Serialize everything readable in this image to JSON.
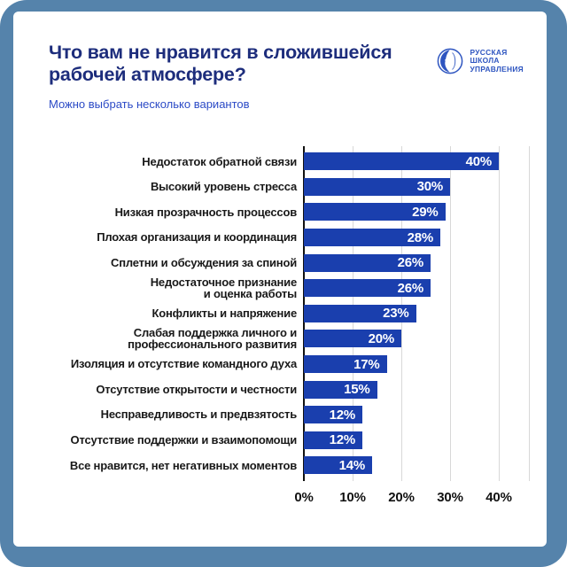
{
  "header": {
    "title": "Что вам не нравится в сложившейся\nрабочей атмосфере?",
    "subtitle": "Можно выбрать несколько вариантов",
    "logo": {
      "line1": "РУССКАЯ",
      "line2": "ШКОЛА",
      "line3": "УПРАВЛЕНИЯ"
    }
  },
  "chart_data": {
    "type": "bar",
    "orientation": "horizontal",
    "title": "Что вам не нравится в сложившейся рабочей атмосфере?",
    "subtitle": "Можно выбрать несколько вариантов",
    "categories": [
      "Недостаток обратной связи",
      "Высокий уровень стресса",
      "Низкая прозрачность процессов",
      "Плохая организация и координация",
      "Сплетни и обсуждения за спиной",
      "Недостаточное признание\nи оценка работы",
      "Конфликты и напряжение",
      "Слабая поддержка личного и\nпрофессионального развития",
      "Изоляция и отсутствие командного духа",
      "Отсутствие открытости и честности",
      "Несправедливость и предвзятость",
      "Отсутствие поддержки и взаимопомощи",
      "Все нравится, нет негативных моментов"
    ],
    "values": [
      40,
      30,
      29,
      28,
      26,
      26,
      23,
      20,
      17,
      15,
      12,
      12,
      14
    ],
    "value_labels": [
      "40%",
      "30%",
      "29%",
      "28%",
      "26%",
      "26%",
      "23%",
      "20%",
      "17%",
      "15%",
      "12%",
      "12%",
      "14%"
    ],
    "x_tick_labels": [
      "0%",
      "10%",
      "20%",
      "30%",
      "40%"
    ],
    "x_tick_values": [
      0,
      10,
      20,
      30,
      40
    ],
    "xlim": [
      0,
      46
    ],
    "grid": true,
    "legend": false,
    "value_label_position": "inside-end"
  },
  "colors": {
    "frame": "#5583ab",
    "card": "#ffffff",
    "title": "#1d2d7c",
    "subtitle": "#2b4ac6",
    "bar": "#1a3fae",
    "bar_label": "#ffffff",
    "category_label": "#191919",
    "tick_label": "#111111",
    "gridline": "#d8d8d8",
    "axis_line": "#111111",
    "logo": "#2e55c0"
  }
}
